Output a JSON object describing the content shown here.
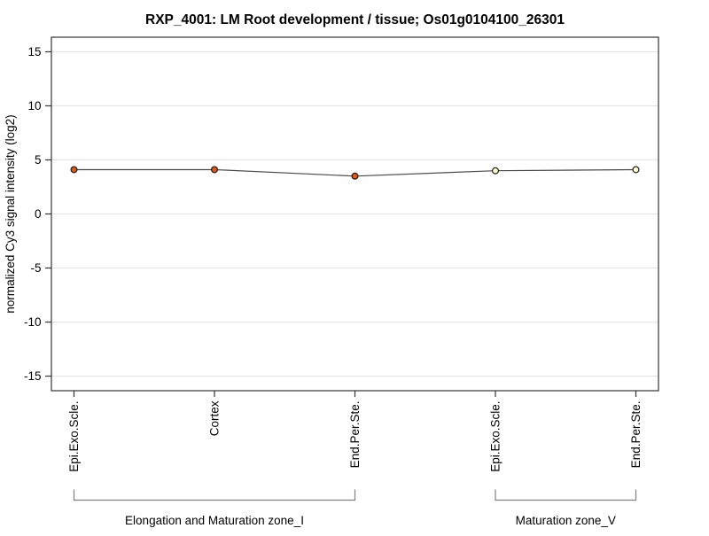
{
  "title": "RXP_4001: LM Root development / tissue; Os01g0104100_26301",
  "chart_data": {
    "type": "line",
    "title": "RXP_4001: LM Root development / tissue; Os01g0104100_26301",
    "ylabel": "normalized Cy3 signal intensity (log2)",
    "xlabel": "",
    "categories": [
      "Epi.Exo.Scle.",
      "Cortex",
      "End.Per.Ste.",
      "Epi.Exo.Scle.",
      "End.Per.Ste."
    ],
    "values": [
      4.1,
      4.1,
      3.5,
      4.0,
      4.1
    ],
    "yticks": [
      15,
      10,
      5,
      0,
      -5,
      -10,
      -15
    ],
    "ylim": [
      -16.35,
      16.35
    ],
    "grid": "horizontal",
    "legend": "none",
    "groups": [
      {
        "label": "Elongation and Maturation zone_I",
        "from": 0,
        "to": 2
      },
      {
        "label": "Maturation zone_V",
        "from": 3,
        "to": 4
      }
    ],
    "colors": {
      "point_fills": [
        "#dd5813",
        "#dd5813",
        "#dd5813",
        "#ffffcc",
        "#ffffcc"
      ],
      "point_stroke": "#1a1a1a",
      "line": "#4a4a4a",
      "grid": "#e3e3e3",
      "axis": "#333333",
      "bracket": "#808080",
      "text": "#000000"
    }
  }
}
